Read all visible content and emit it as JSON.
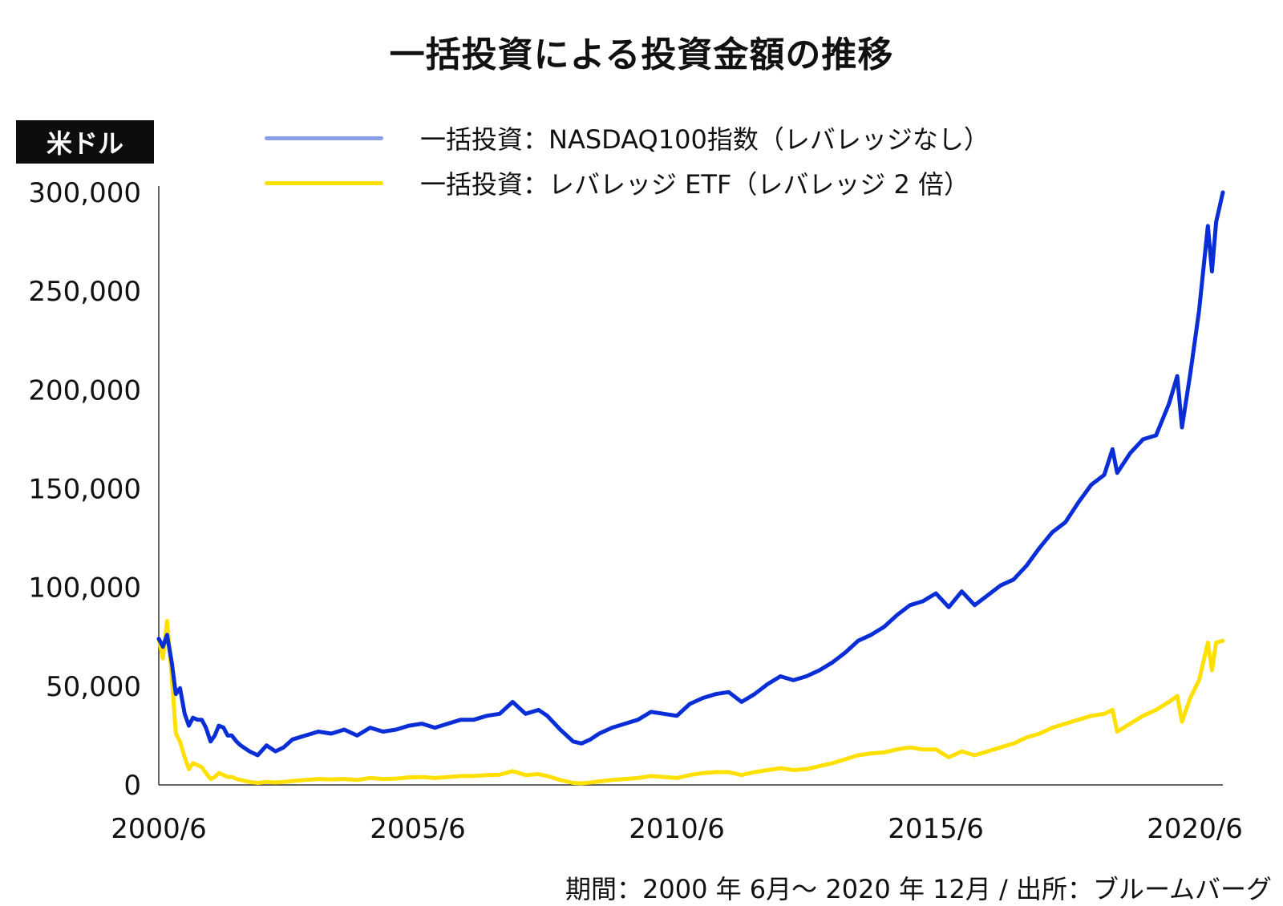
{
  "title": "一括投資による投資金額の推移",
  "unit_label": "米ドル",
  "footer": "期間：2000 年 6月〜 2020 年 12月 / 出所：ブルームバーグ",
  "colors": {
    "nasdaq": "#0A2ED6",
    "nasdaq_legend": "#8A9EEA",
    "leveraged": "#FFE000",
    "axis": "#333333"
  },
  "chart_data": {
    "type": "line",
    "title": "一括投資による投資金額の推移",
    "ylabel": "米ドル",
    "ylim": [
      0,
      300000
    ],
    "yticks": [
      0,
      50000,
      100000,
      150000,
      200000,
      250000,
      300000
    ],
    "ytick_labels": [
      "0",
      "50,000",
      "100,000",
      "150,000",
      "200,000",
      "250,000",
      "300,000"
    ],
    "xlim": [
      2000.42,
      2020.96
    ],
    "xticks": [
      2000.42,
      2005.42,
      2010.42,
      2015.42,
      2020.42
    ],
    "xtick_labels": [
      "2000/6",
      "2005/6",
      "2010/6",
      "2015/6",
      "2020/6"
    ],
    "legend_placement": "top",
    "series": [
      {
        "name": "一括投資：NASDAQ100指数（レバレッジなし）",
        "x": [
          2000.42,
          2000.5,
          2000.58,
          2000.67,
          2000.75,
          2000.83,
          2000.92,
          2001.0,
          2001.08,
          2001.17,
          2001.25,
          2001.33,
          2001.42,
          2001.5,
          2001.58,
          2001.67,
          2001.75,
          2001.83,
          2001.92,
          2002.0,
          2002.17,
          2002.33,
          2002.5,
          2002.67,
          2002.83,
          2003.0,
          2003.25,
          2003.5,
          2003.75,
          2004.0,
          2004.25,
          2004.5,
          2004.75,
          2005.0,
          2005.25,
          2005.5,
          2005.75,
          2006.0,
          2006.25,
          2006.5,
          2006.75,
          2007.0,
          2007.25,
          2007.5,
          2007.75,
          2007.92,
          2008.17,
          2008.42,
          2008.58,
          2008.75,
          2008.92,
          2009.17,
          2009.42,
          2009.67,
          2009.92,
          2010.17,
          2010.42,
          2010.67,
          2010.92,
          2011.17,
          2011.42,
          2011.67,
          2011.92,
          2012.17,
          2012.42,
          2012.67,
          2012.92,
          2013.17,
          2013.42,
          2013.67,
          2013.92,
          2014.17,
          2014.42,
          2014.67,
          2014.92,
          2015.17,
          2015.42,
          2015.67,
          2015.92,
          2016.17,
          2016.42,
          2016.67,
          2016.92,
          2017.17,
          2017.42,
          2017.67,
          2017.92,
          2018.17,
          2018.42,
          2018.67,
          2018.83,
          2018.92,
          2019.17,
          2019.42,
          2019.67,
          2019.92,
          2020.08,
          2020.17,
          2020.33,
          2020.5,
          2020.67,
          2020.75,
          2020.83,
          2020.96
        ],
        "values": [
          74000,
          70000,
          76000,
          62000,
          46000,
          49000,
          36000,
          30000,
          34000,
          33000,
          33000,
          29000,
          22000,
          25000,
          30000,
          29000,
          25000,
          25000,
          22000,
          20000,
          17000,
          15000,
          20000,
          17000,
          19000,
          23000,
          25000,
          27000,
          26000,
          28000,
          25000,
          29000,
          27000,
          28000,
          30000,
          31000,
          29000,
          31000,
          33000,
          33000,
          35000,
          36000,
          42000,
          36000,
          38000,
          35000,
          28000,
          22000,
          21000,
          23000,
          26000,
          29000,
          31000,
          33000,
          37000,
          36000,
          35000,
          41000,
          44000,
          46000,
          47000,
          42000,
          46000,
          51000,
          55000,
          53000,
          55000,
          58000,
          62000,
          67000,
          73000,
          76000,
          80000,
          86000,
          91000,
          93000,
          97000,
          90000,
          98000,
          91000,
          96000,
          101000,
          104000,
          111000,
          120000,
          128000,
          133000,
          143000,
          152000,
          157000,
          170000,
          158000,
          168000,
          175000,
          177000,
          193000,
          207000,
          181000,
          208000,
          240000,
          283000,
          260000,
          285000,
          300000
        ]
      },
      {
        "name": "一括投資：レバレッジ ETF（レバレッジ 2 倍）",
        "x": [
          2000.42,
          2000.5,
          2000.58,
          2000.67,
          2000.75,
          2000.83,
          2000.92,
          2001.0,
          2001.08,
          2001.17,
          2001.25,
          2001.33,
          2001.42,
          2001.5,
          2001.58,
          2001.67,
          2001.75,
          2001.83,
          2001.92,
          2002.0,
          2002.17,
          2002.33,
          2002.5,
          2002.67,
          2002.83,
          2003.0,
          2003.25,
          2003.5,
          2003.75,
          2004.0,
          2004.25,
          2004.5,
          2004.75,
          2005.0,
          2005.25,
          2005.5,
          2005.75,
          2006.0,
          2006.25,
          2006.5,
          2006.75,
          2007.0,
          2007.25,
          2007.5,
          2007.75,
          2007.92,
          2008.17,
          2008.42,
          2008.58,
          2008.75,
          2008.92,
          2009.17,
          2009.42,
          2009.67,
          2009.92,
          2010.17,
          2010.42,
          2010.67,
          2010.92,
          2011.17,
          2011.42,
          2011.67,
          2011.92,
          2012.17,
          2012.42,
          2012.67,
          2012.92,
          2013.17,
          2013.42,
          2013.67,
          2013.92,
          2014.17,
          2014.42,
          2014.67,
          2014.92,
          2015.17,
          2015.42,
          2015.67,
          2015.92,
          2016.17,
          2016.42,
          2016.67,
          2016.92,
          2017.17,
          2017.42,
          2017.67,
          2017.92,
          2018.17,
          2018.42,
          2018.67,
          2018.83,
          2018.92,
          2019.17,
          2019.42,
          2019.67,
          2019.92,
          2020.08,
          2020.17,
          2020.33,
          2020.5,
          2020.67,
          2020.75,
          2020.83,
          2020.96
        ],
        "values": [
          74000,
          64000,
          83000,
          55000,
          26000,
          22000,
          14000,
          8000,
          11000,
          10000,
          9000,
          6000,
          3000,
          4000,
          6000,
          5000,
          4000,
          4000,
          3000,
          2500,
          1500,
          1000,
          1500,
          1200,
          1500,
          2000,
          2500,
          3000,
          2800,
          3000,
          2500,
          3500,
          3000,
          3200,
          3800,
          4000,
          3500,
          4000,
          4500,
          4500,
          5000,
          5200,
          7000,
          5000,
          5500,
          4500,
          2500,
          1000,
          800,
          1200,
          1800,
          2500,
          3000,
          3500,
          4500,
          4000,
          3500,
          5000,
          6000,
          6500,
          6500,
          5000,
          6500,
          7500,
          8500,
          7500,
          8000,
          9500,
          11000,
          13000,
          15000,
          16000,
          16500,
          18000,
          19000,
          18000,
          18000,
          14000,
          17000,
          15000,
          17000,
          19000,
          21000,
          24000,
          26000,
          29000,
          31000,
          33000,
          35000,
          36000,
          38000,
          27000,
          31000,
          35000,
          38000,
          42000,
          45000,
          32000,
          44000,
          53000,
          72000,
          58000,
          72000,
          73000
        ]
      }
    ]
  }
}
